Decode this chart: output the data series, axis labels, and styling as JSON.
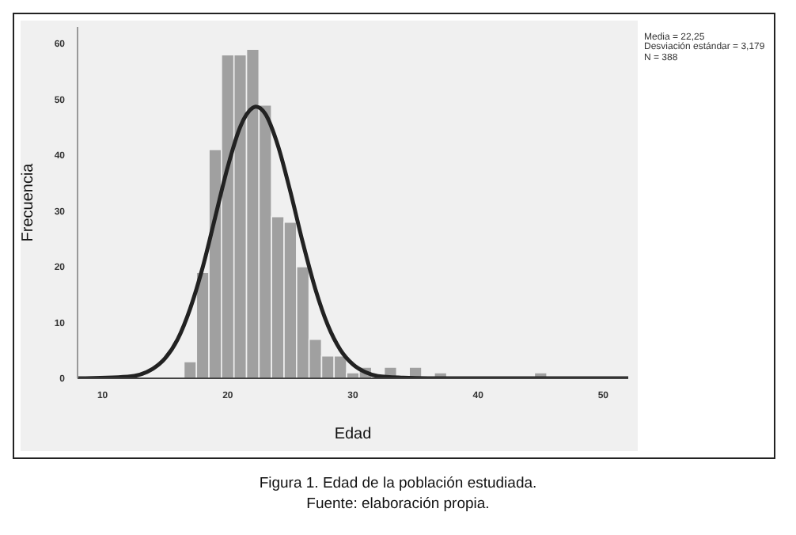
{
  "chart_data": {
    "type": "histogram",
    "xlabel": "Edad",
    "ylabel": "Frecuencia",
    "bins": [
      16.5,
      17.5,
      18.5,
      19.5,
      20.5,
      21.5,
      22.5,
      23.5,
      24.5,
      25.5,
      26.5,
      27.5,
      28.5,
      29.5,
      30.5,
      31.5,
      32.5,
      33.5,
      34.5,
      35.5,
      36.5,
      37.5,
      38.5,
      39.5,
      40.5,
      41.5,
      42.5,
      43.5,
      44.5,
      45.5
    ],
    "values": [
      3,
      19,
      41,
      58,
      58,
      59,
      49,
      29,
      28,
      20,
      7,
      4,
      4,
      1,
      2,
      0,
      2,
      0,
      2,
      0,
      1,
      0,
      0,
      0,
      0,
      0,
      0,
      0,
      1
    ],
    "color": "#a0a0a0",
    "series": [
      {
        "type": "line",
        "color": "#222222",
        "x": [
          8,
          12,
          14,
          15,
          16,
          17,
          18,
          19,
          20,
          21,
          22,
          22.25,
          23,
          24,
          25,
          26,
          27,
          28,
          29,
          30,
          31,
          32,
          34,
          36,
          52
        ],
        "values": [
          0,
          0.3,
          1.7,
          3.6,
          7.0,
          12.5,
          19.9,
          28.9,
          37.9,
          45.1,
          48.5,
          48.7,
          47.4,
          41.8,
          33.5,
          24.3,
          16.0,
          9.5,
          5.1,
          2.5,
          1.1,
          0.4,
          0.1,
          0,
          0
        ]
      }
    ],
    "xlim": [
      8,
      52
    ],
    "xticks": [
      10,
      20,
      30,
      40,
      50
    ],
    "ylim": [
      0,
      63
    ],
    "yticks": [
      0,
      10,
      20,
      30,
      40,
      50,
      60
    ],
    "grid": false,
    "marker": "none",
    "line_style": "solid",
    "annotations": [
      "Media = 22,25\nDesviación estándar = 3,179\nN = 388",
      "Figura 1. Edad de la población estudiada.",
      "Fuente: elaboración propia."
    ]
  }
}
